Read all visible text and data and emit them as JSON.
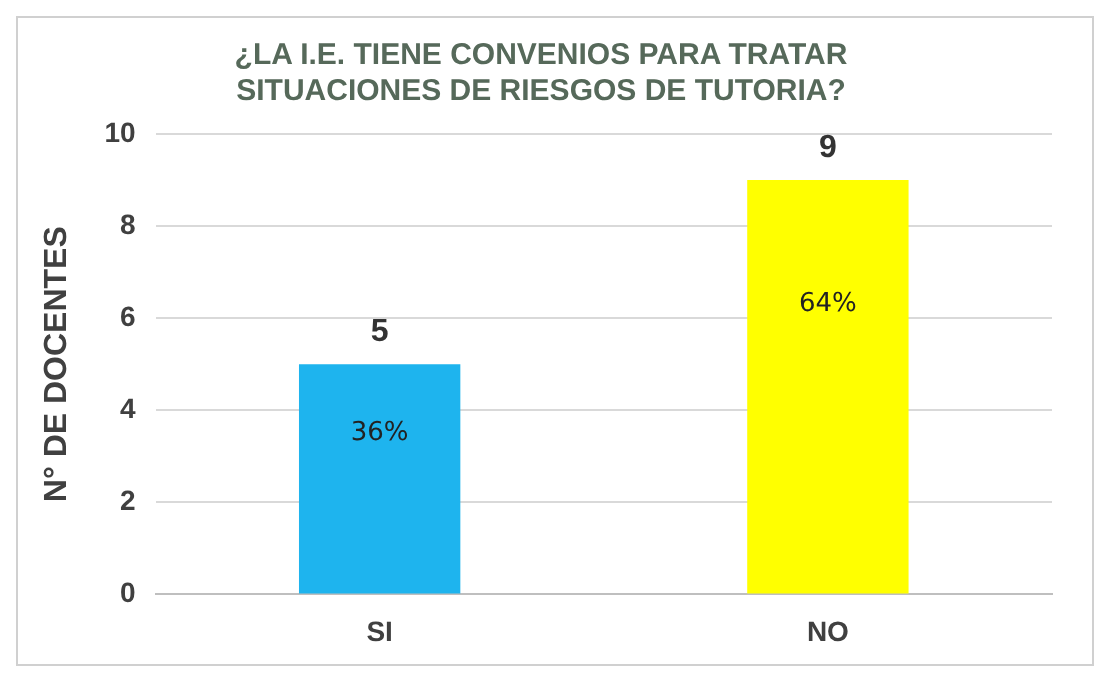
{
  "chart_data": {
    "type": "bar",
    "title": [
      "¿LA I.E. TIENE CONVENIOS PARA TRATAR",
      "SITUACIONES DE RIESGOS DE TUTORIA?"
    ],
    "ylabel": "N° DE DOCENTES",
    "categories": [
      "SI",
      "NO"
    ],
    "values": [
      5,
      9
    ],
    "colors": [
      "#1eb4ee",
      "#ffff00"
    ],
    "ylim": [
      0,
      10
    ],
    "yticks": [
      0,
      2,
      4,
      6,
      8,
      10
    ],
    "grid": "y",
    "data_labels": true,
    "legend": false,
    "annotations": [
      "36%",
      "64%"
    ]
  }
}
